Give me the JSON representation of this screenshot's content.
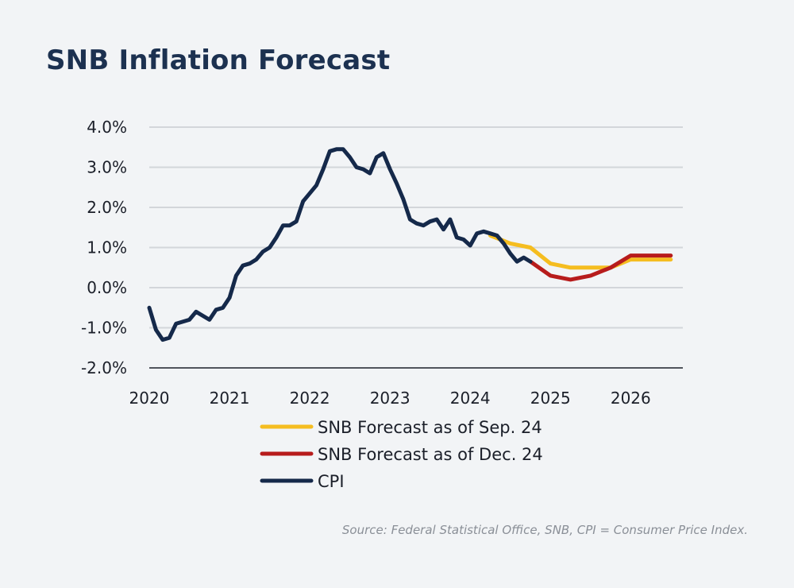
{
  "title": "SNB Inflation Forecast",
  "source": "Source: Federal Statistical Office, SNB, CPI = Consumer Price Index.",
  "chart_data": {
    "type": "line",
    "title": "SNB Inflation Forecast",
    "xlabel": "",
    "ylabel": "",
    "xlim": [
      2020.0,
      2026.65
    ],
    "ylim": [
      -2.0,
      4.0
    ],
    "grid": true,
    "legend_position": "bottom-center",
    "x_ticks": [
      {
        "value": 2020,
        "label": "2020"
      },
      {
        "value": 2021,
        "label": "2021"
      },
      {
        "value": 2022,
        "label": "2022"
      },
      {
        "value": 2023,
        "label": "2023"
      },
      {
        "value": 2024,
        "label": "2024"
      },
      {
        "value": 2025,
        "label": "2025"
      },
      {
        "value": 2026,
        "label": "2026"
      }
    ],
    "y_ticks": [
      {
        "value": 4.0,
        "label": "4.0%"
      },
      {
        "value": 3.0,
        "label": "3.0%"
      },
      {
        "value": 2.0,
        "label": "2.0%"
      },
      {
        "value": 1.0,
        "label": "1.0%"
      },
      {
        "value": 0.0,
        "label": "0.0%"
      },
      {
        "value": -1.0,
        "label": "-1.0%"
      },
      {
        "value": -2.0,
        "label": "-2.0%"
      }
    ],
    "series": [
      {
        "name": "SNB Forecast as of Sep. 24",
        "color": "#f5bd20",
        "points": [
          [
            2024.25,
            1.3
          ],
          [
            2024.5,
            1.1
          ],
          [
            2024.75,
            1.0
          ],
          [
            2025.0,
            0.6
          ],
          [
            2025.25,
            0.5
          ],
          [
            2025.5,
            0.5
          ],
          [
            2025.75,
            0.5
          ],
          [
            2026.0,
            0.7
          ],
          [
            2026.25,
            0.7
          ],
          [
            2026.5,
            0.7
          ]
        ]
      },
      {
        "name": "SNB Forecast as of Dec. 24",
        "color": "#b71c1c",
        "points": [
          [
            2024.75,
            0.65
          ],
          [
            2025.0,
            0.3
          ],
          [
            2025.25,
            0.2
          ],
          [
            2025.5,
            0.3
          ],
          [
            2025.75,
            0.5
          ],
          [
            2026.0,
            0.8
          ],
          [
            2026.25,
            0.8
          ],
          [
            2026.5,
            0.8
          ]
        ]
      },
      {
        "name": "CPI",
        "color": "#15294a",
        "points": [
          [
            2020.0,
            -0.5
          ],
          [
            2020.083,
            -1.05
          ],
          [
            2020.167,
            -1.3
          ],
          [
            2020.25,
            -1.25
          ],
          [
            2020.333,
            -0.9
          ],
          [
            2020.417,
            -0.85
          ],
          [
            2020.5,
            -0.8
          ],
          [
            2020.583,
            -0.6
          ],
          [
            2020.667,
            -0.7
          ],
          [
            2020.75,
            -0.8
          ],
          [
            2020.833,
            -0.55
          ],
          [
            2020.917,
            -0.5
          ],
          [
            2021.0,
            -0.25
          ],
          [
            2021.083,
            0.3
          ],
          [
            2021.167,
            0.55
          ],
          [
            2021.25,
            0.6
          ],
          [
            2021.333,
            0.7
          ],
          [
            2021.417,
            0.9
          ],
          [
            2021.5,
            1.0
          ],
          [
            2021.583,
            1.25
          ],
          [
            2021.667,
            1.55
          ],
          [
            2021.75,
            1.55
          ],
          [
            2021.833,
            1.65
          ],
          [
            2021.917,
            2.15
          ],
          [
            2022.0,
            2.35
          ],
          [
            2022.083,
            2.55
          ],
          [
            2022.167,
            2.95
          ],
          [
            2022.25,
            3.4
          ],
          [
            2022.333,
            3.45
          ],
          [
            2022.417,
            3.45
          ],
          [
            2022.5,
            3.25
          ],
          [
            2022.583,
            3.0
          ],
          [
            2022.667,
            2.95
          ],
          [
            2022.75,
            2.85
          ],
          [
            2022.833,
            3.25
          ],
          [
            2022.917,
            3.35
          ],
          [
            2023.0,
            2.95
          ],
          [
            2023.083,
            2.6
          ],
          [
            2023.167,
            2.2
          ],
          [
            2023.25,
            1.7
          ],
          [
            2023.333,
            1.6
          ],
          [
            2023.417,
            1.55
          ],
          [
            2023.5,
            1.65
          ],
          [
            2023.583,
            1.7
          ],
          [
            2023.667,
            1.45
          ],
          [
            2023.75,
            1.7
          ],
          [
            2023.833,
            1.25
          ],
          [
            2023.917,
            1.2
          ],
          [
            2024.0,
            1.05
          ],
          [
            2024.083,
            1.35
          ],
          [
            2024.167,
            1.4
          ],
          [
            2024.25,
            1.35
          ],
          [
            2024.333,
            1.3
          ],
          [
            2024.417,
            1.1
          ],
          [
            2024.5,
            0.85
          ],
          [
            2024.583,
            0.65
          ],
          [
            2024.667,
            0.75
          ],
          [
            2024.75,
            0.65
          ]
        ]
      }
    ]
  }
}
